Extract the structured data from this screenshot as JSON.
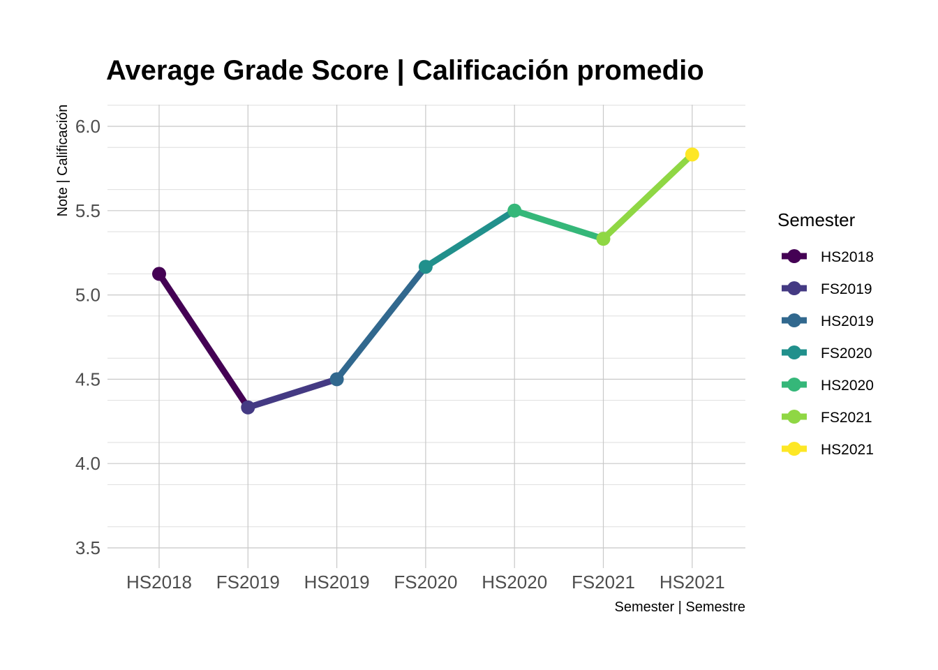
{
  "chart_data": {
    "type": "line",
    "title": "Average Grade Score | Calificación promedio",
    "xlabel": "Semester | Semestre",
    "ylabel": "Note | Calificación",
    "categories": [
      "HS2018",
      "FS2019",
      "HS2019",
      "FS2020",
      "HS2020",
      "FS2021",
      "HS2021"
    ],
    "values": [
      5.125,
      4.333,
      4.5,
      5.167,
      5.5,
      5.333,
      5.833
    ],
    "ylim": [
      3.5,
      6.0
    ],
    "yticks": [
      "3.5",
      "4.0",
      "4.5",
      "5.0",
      "5.5",
      "6.0"
    ],
    "colors": [
      "#440154",
      "#443A83",
      "#31688E",
      "#21908C",
      "#35B779",
      "#8FD744",
      "#FDE725"
    ],
    "grid": true,
    "legend": {
      "title": "Semester",
      "placement": "right",
      "entries": [
        "HS2018",
        "FS2019",
        "HS2019",
        "FS2020",
        "HS2020",
        "FS2021",
        "HS2021"
      ]
    }
  }
}
